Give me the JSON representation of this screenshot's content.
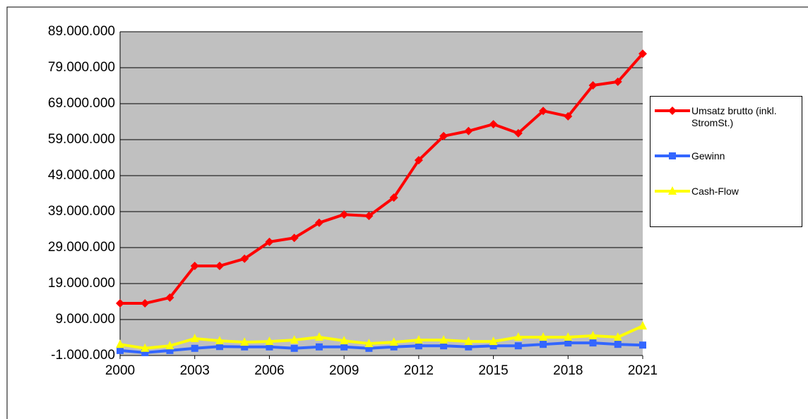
{
  "chart_data": {
    "type": "line",
    "x": [
      2000,
      2001,
      2002,
      2003,
      2004,
      2005,
      2006,
      2007,
      2008,
      2009,
      2010,
      2011,
      2012,
      2013,
      2014,
      2015,
      2016,
      2017,
      2018,
      2019,
      2020,
      2021
    ],
    "xlim": [
      2000,
      2021
    ],
    "xticks": [
      2000,
      2003,
      2006,
      2009,
      2012,
      2015,
      2018,
      2021
    ],
    "ylim": [
      -1000000,
      89000000
    ],
    "yticks": [
      {
        "value": -1000000,
        "label": "-1.000.000"
      },
      {
        "value": 9000000,
        "label": "9.000.000"
      },
      {
        "value": 19000000,
        "label": "19.000.000"
      },
      {
        "value": 29000000,
        "label": "29.000.000"
      },
      {
        "value": 39000000,
        "label": "39.000.000"
      },
      {
        "value": 49000000,
        "label": "49.000.000"
      },
      {
        "value": 59000000,
        "label": "59.000.000"
      },
      {
        "value": 69000000,
        "label": "69.000.000"
      },
      {
        "value": 79000000,
        "label": "79.000.000"
      },
      {
        "value": 89000000,
        "label": "89.000.000"
      }
    ],
    "grid": true,
    "legend": "right",
    "series": [
      {
        "name": "Umsatz brutto (inkl. StromSt.)",
        "color": "#ff0000",
        "marker": "diamond",
        "values": [
          13500000,
          13500000,
          15100000,
          23900000,
          23900000,
          25900000,
          30600000,
          31700000,
          35900000,
          38200000,
          37800000,
          42900000,
          53300000,
          60000000,
          61400000,
          63300000,
          60800000,
          67000000,
          65500000,
          74100000,
          75100000,
          82900000
        ]
      },
      {
        "name": "Gewinn",
        "color": "#3366ff",
        "marker": "square",
        "values": [
          400000,
          -200000,
          400000,
          1000000,
          1500000,
          1400000,
          1400000,
          1000000,
          1400000,
          1400000,
          1000000,
          1400000,
          1700000,
          1700000,
          1400000,
          1700000,
          1700000,
          2100000,
          2500000,
          2500000,
          2100000,
          1900000
        ]
      },
      {
        "name": "Cash-Flow",
        "color": "#ffff00",
        "marker": "triangle",
        "values": [
          2100000,
          1000000,
          1700000,
          3700000,
          3100000,
          2700000,
          2900000,
          3300000,
          4100000,
          3100000,
          2300000,
          2700000,
          3300000,
          3300000,
          2900000,
          2900000,
          4100000,
          4100000,
          4100000,
          4500000,
          4100000,
          7200000
        ]
      }
    ]
  }
}
